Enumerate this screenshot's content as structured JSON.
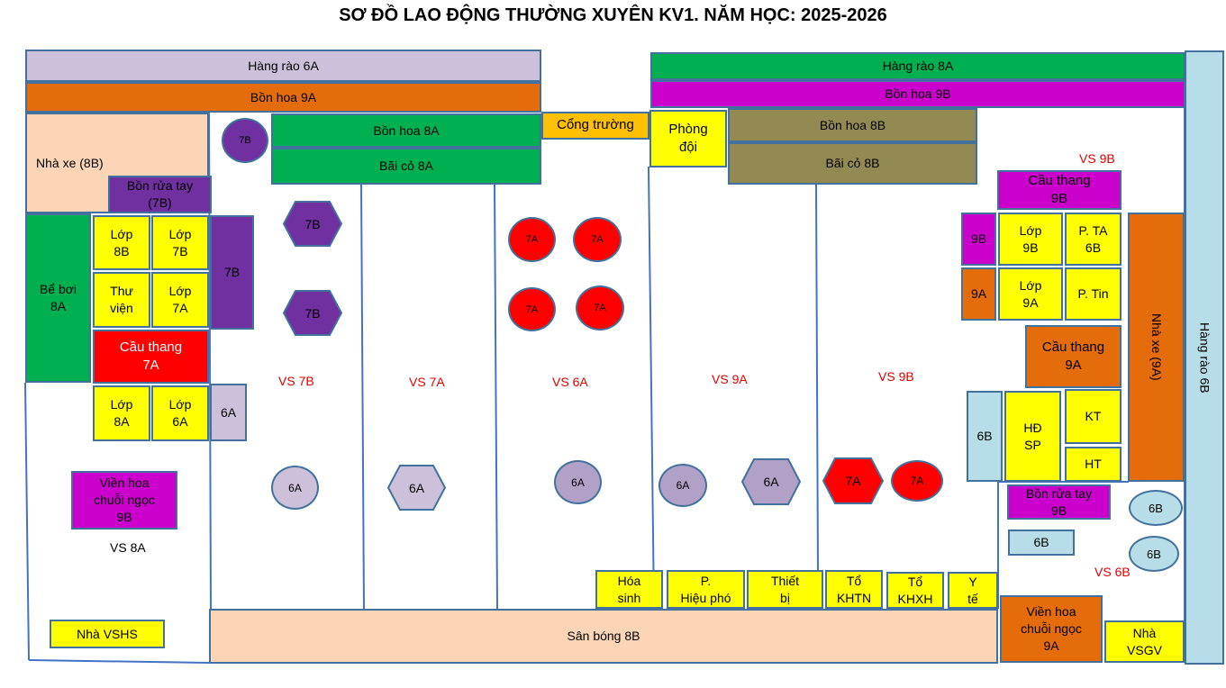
{
  "title": "SƠ ĐỒ LAO ĐỘNG THƯỜNG XUYÊN KV1. NĂM HỌC:  2025-2026",
  "colors": {
    "lavender": "#ccc0da",
    "orange": "#e46c0a",
    "green": "#00b050",
    "peach": "#fbd5b5",
    "purple": "#7030a0",
    "yellow": "#ffff00",
    "red": "#ff0000",
    "magenta": "#cc00cc",
    "olive": "#938953",
    "gold": "#ffc000",
    "lightblue": "#b7dee8",
    "line": "#4472c4"
  },
  "blocks": {
    "hang_rao_6a": "Hàng rào 6A",
    "bon_hoa_9a_top": "Bồn hoa 9A",
    "hang_rao_8a": "Hàng rào 8A",
    "bon_hoa_9b_top": "Bồn hoa 9B",
    "hang_rao_6b": "Hàng rào 6B",
    "nha_xe_8b": "Nhà xe (8B)",
    "bon_rua_tay_7b": "Bồn rửa tay\n(7B)",
    "bon_hoa_8a": "Bồn hoa 8A",
    "bai_co_8a": "Bãi cỏ 8A",
    "cong_truong": "Cổng trường",
    "phong_doi": "Phòng\nđội",
    "bon_hoa_8b": "Bồn hoa 8B",
    "bai_co_8b": "Bãi cỏ 8B",
    "be_boi": "Bể bơi\n8A",
    "lop_8b": "Lớp\n8B",
    "lop_7b": "Lớp\n7B",
    "purple_7b": "7B",
    "thu_vien": "Thư\nviện",
    "lop_7a": "Lớp\n7A",
    "cau_thang_7a": "Cầu thang\n7A",
    "lop_8a": "Lớp\n8A",
    "lop_6a": "Lớp\n6A",
    "box_6a": "6A",
    "vien_hoa_9b": "Viền hoa\nchuỗi  ngọc\n9B",
    "nha_vshs": "Nhà VSHS",
    "cau_thang_9b": "Cầu thang\n9B",
    "box_9b": "9B",
    "lop_9b": "Lớp\n9B",
    "p_ta": "P. TA\n6B",
    "box_9a": "9A",
    "lop_9a": "Lớp\n9A",
    "p_tin": "P. Tin",
    "nha_xe_9a": "Nhà xe (9A)",
    "cau_thang_9a": "Cầu thang\n9A",
    "box_6b": "6B",
    "hd_sp": "HĐ\nSP",
    "kt": "KT",
    "ht": "HT",
    "bon_rua_tay_9b": "Bồn rửa tay\n9B",
    "small_6b": "6B",
    "hoa_sinh": "Hóa\nsinh",
    "p_hieu_pho": "P.\nHiệu phó",
    "thiet_bi": "Thiết\nbị",
    "to_khtn": "Tổ\nKHTN",
    "to_khxh": "Tổ\nKHXH",
    "y_te": "Y\ntế",
    "san_bong": "Sân bóng  8B",
    "vien_hoa_9a": "Viền hoa\nchuỗi  ngọc\n9A",
    "nha_vsgv": "Nhà\nVSGV"
  },
  "labels": {
    "vs_7b": "VS 7B",
    "vs_7a": "VS 7A",
    "vs_6a": "VS 6A",
    "vs_9a": "VS 9A",
    "vs_9b_mid": "VS 9B",
    "vs_9b_top": "VS 9B",
    "vs_6b": "VS 6B",
    "vs_8a": "VS 8A"
  },
  "markers": {
    "c7b_top": "7B",
    "h7b_1": "7B",
    "h7b_2": "7B",
    "r7a_1": "7A",
    "r7a_2": "7A",
    "r7a_3": "7A",
    "r7a_4": "7A",
    "c6a_1": "6A",
    "h6a_1": "6A",
    "c6a_2": "6A",
    "c6a_3": "6A",
    "h6a_2": "6A",
    "h7a_red": "7A",
    "c7a_red": "7A",
    "c6b_1": "6B",
    "c6b_2": "6B"
  }
}
